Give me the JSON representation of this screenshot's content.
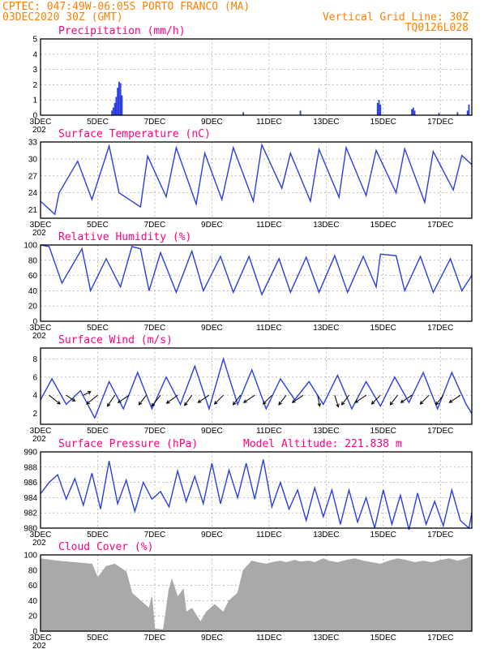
{
  "header": {
    "line1": "CPTEC:   047:49W-06:05S   PORTO FRANCO (MA)",
    "line2_left": "03DEC2020 30Z (GMT)",
    "line2_right": "Vertical Grid Line: 30Z",
    "line3_right": "TQ0126L028"
  },
  "colors": {
    "header": "#ff8000",
    "title": "#ff0080",
    "line": "#2a3fe0",
    "bar": "#2a3fe0",
    "cloud": "#a9a9a9",
    "arrow": "#000000"
  },
  "x_axis": {
    "start_day": 3,
    "end_day": 18.1,
    "tick_labels": [
      "3DEC",
      "5DEC",
      "7DEC",
      "9DEC",
      "11DEC",
      "13DEC",
      "15DEC",
      "17DEC"
    ],
    "tick_days": [
      3,
      5,
      7,
      9,
      11,
      13,
      15,
      17
    ],
    "year_fragment": "202"
  },
  "chart_data": [
    {
      "type": "bar",
      "title": "Precipitation (mm/h)",
      "ylim": [
        0,
        5
      ],
      "yticks": [
        0,
        1,
        2,
        3,
        4,
        5
      ],
      "x": [
        5.5,
        5.55,
        5.6,
        5.65,
        5.7,
        5.75,
        5.8,
        5.85,
        10.1,
        12.1,
        14.8,
        14.85,
        14.9,
        16.0,
        16.05,
        16.1,
        16.95,
        17.6,
        17.95,
        18.0
      ],
      "values": [
        0.3,
        0.5,
        0.8,
        1.2,
        1.8,
        2.2,
        2.1,
        1.3,
        0.2,
        0.3,
        0.8,
        1.0,
        0.7,
        0.4,
        0.5,
        0.3,
        0.15,
        0.2,
        0.3,
        0.7
      ]
    },
    {
      "type": "line",
      "title": "Surface Temperature (nC)",
      "ylim": [
        19.5,
        33
      ],
      "yticks": [
        21,
        24,
        27,
        30,
        33
      ],
      "x": [
        3.0,
        3.5,
        3.65,
        4.3,
        4.8,
        5.4,
        5.75,
        6.5,
        6.75,
        7.4,
        7.75,
        8.45,
        8.75,
        9.35,
        9.75,
        10.45,
        10.75,
        11.45,
        11.75,
        12.45,
        12.75,
        13.45,
        13.7,
        14.4,
        14.75,
        15.45,
        15.75,
        16.45,
        16.75,
        17.45,
        17.75,
        18.1
      ],
      "values": [
        22.5,
        20.2,
        24.0,
        29.6,
        22.8,
        32.3,
        24.0,
        21.5,
        30.5,
        23.3,
        32.0,
        22.0,
        31.0,
        22.8,
        32.0,
        22.5,
        32.5,
        24.8,
        31.0,
        22.5,
        31.7,
        23.2,
        32.0,
        23.5,
        31.5,
        24.0,
        31.8,
        22.3,
        31.3,
        24.5,
        30.6,
        29.0
      ]
    },
    {
      "type": "line",
      "title": "Relative Humidity (%)",
      "ylim": [
        0,
        100
      ],
      "yticks": [
        0,
        20,
        40,
        60,
        80,
        100
      ],
      "x": [
        3.0,
        3.3,
        3.75,
        4.45,
        4.75,
        5.3,
        5.8,
        6.2,
        6.5,
        6.8,
        7.2,
        7.75,
        8.3,
        8.7,
        9.3,
        9.75,
        10.3,
        10.75,
        11.35,
        11.75,
        12.3,
        12.75,
        13.3,
        13.75,
        14.3,
        14.75,
        14.9,
        15.45,
        15.75,
        16.3,
        16.75,
        17.35,
        17.75,
        18.1
      ],
      "values": [
        100,
        98,
        50,
        95,
        40,
        82,
        45,
        98,
        95,
        40,
        90,
        38,
        92,
        40,
        85,
        38,
        85,
        35,
        82,
        38,
        84,
        38,
        86,
        38,
        85,
        45,
        88,
        86,
        40,
        85,
        38,
        82,
        40,
        60
      ]
    },
    {
      "type": "line",
      "title": "Surface Wind (m/s)",
      "ylim": [
        0.8,
        9.2
      ],
      "yticks": [
        2,
        4,
        6,
        8
      ],
      "x": [
        3.0,
        3.4,
        3.9,
        4.4,
        4.9,
        5.4,
        5.9,
        6.4,
        6.9,
        7.4,
        7.9,
        8.4,
        8.9,
        9.4,
        9.9,
        10.4,
        10.9,
        11.4,
        11.9,
        12.4,
        12.9,
        13.4,
        13.9,
        14.4,
        14.9,
        15.4,
        15.9,
        16.4,
        16.9,
        17.4,
        17.9,
        18.1
      ],
      "values": [
        3.5,
        5.8,
        3.0,
        4.5,
        1.5,
        5.5,
        2.5,
        6.5,
        2.5,
        6.0,
        3.0,
        7.2,
        2.5,
        8.0,
        3.0,
        6.8,
        2.5,
        5.8,
        3.5,
        5.5,
        3.0,
        6.2,
        2.5,
        5.5,
        2.8,
        6.0,
        3.2,
        6.5,
        2.5,
        6.5,
        3.0,
        2.0
      ],
      "arrows": {
        "x": [
          3.3,
          3.9,
          4.5,
          5.0,
          5.6,
          6.1,
          6.7,
          7.2,
          7.8,
          8.3,
          8.9,
          9.4,
          10.0,
          10.5,
          11.1,
          11.6,
          12.2,
          12.7,
          13.3,
          13.8,
          14.4,
          14.9,
          15.5,
          16.0,
          16.6,
          17.1,
          17.7
        ],
        "u": [
          1.5,
          1.2,
          1.0,
          -1.5,
          -1.0,
          -1.5,
          -1.0,
          -1.2,
          -1.5,
          -1.0,
          -1.5,
          -1.2,
          -1.0,
          -1.5,
          -1.2,
          -1.0,
          -1.5,
          0.3,
          0.5,
          -1.0,
          -1.5,
          -1.2,
          -1.0,
          -1.5,
          -1.2,
          -1.0,
          -1.5
        ],
        "v": [
          -1.2,
          -0.8,
          0.5,
          -1.2,
          -1.5,
          -1.0,
          -1.3,
          -1.5,
          -1.1,
          -1.4,
          -1.0,
          -1.2,
          -1.3,
          -1.0,
          -1.2,
          -1.3,
          -1.0,
          -1.5,
          -1.6,
          -1.3,
          -1.0,
          -1.2,
          -1.3,
          -1.0,
          -1.2,
          -1.3,
          -1.0
        ]
      }
    },
    {
      "type": "line",
      "title": "Surface Pressure (hPa)",
      "subtitle": "Model Altitude: 221.838  m",
      "ylim": [
        980,
        990
      ],
      "yticks": [
        980,
        982,
        984,
        986,
        988,
        990
      ],
      "x": [
        3.0,
        3.3,
        3.6,
        3.9,
        4.2,
        4.5,
        4.8,
        5.1,
        5.4,
        5.7,
        6.0,
        6.3,
        6.6,
        6.9,
        7.2,
        7.5,
        7.8,
        8.1,
        8.4,
        8.7,
        9.0,
        9.3,
        9.6,
        9.9,
        10.2,
        10.5,
        10.8,
        11.1,
        11.4,
        11.7,
        12.0,
        12.3,
        12.6,
        12.9,
        13.2,
        13.5,
        13.8,
        14.1,
        14.4,
        14.7,
        15.0,
        15.3,
        15.6,
        15.9,
        16.2,
        16.5,
        16.8,
        17.1,
        17.4,
        17.7,
        18.0,
        18.1
      ],
      "values": [
        984.5,
        986.0,
        987.0,
        983.8,
        986.5,
        983.0,
        987.2,
        982.5,
        988.8,
        983.2,
        986.3,
        982.2,
        986.0,
        983.8,
        984.8,
        982.8,
        987.5,
        983.5,
        986.8,
        983.2,
        988.5,
        983.2,
        987.6,
        984.0,
        988.5,
        983.8,
        989.0,
        982.8,
        986.0,
        982.5,
        985.0,
        981.0,
        985.3,
        981.5,
        985.0,
        980.5,
        985.0,
        980.8,
        984.0,
        980.0,
        985.0,
        980.5,
        984.3,
        979.8,
        984.6,
        980.5,
        983.5,
        980.3,
        985.0,
        981.0,
        980.0,
        982.0
      ]
    },
    {
      "type": "area",
      "title": "Cloud Cover (%)",
      "ylim": [
        0,
        100
      ],
      "yticks": [
        0,
        20,
        40,
        60,
        80,
        100
      ],
      "x": [
        3.0,
        3.6,
        4.2,
        4.8,
        5.0,
        5.3,
        5.6,
        6.0,
        6.2,
        6.5,
        6.8,
        6.9,
        7.0,
        7.3,
        7.5,
        7.6,
        7.8,
        8.0,
        8.1,
        8.3,
        8.6,
        8.8,
        9.1,
        9.4,
        9.6,
        9.9,
        10.1,
        10.4,
        10.6,
        10.9,
        11.1,
        11.4,
        11.6,
        11.9,
        12.1,
        12.4,
        12.6,
        12.9,
        13.1,
        13.4,
        13.7,
        14.0,
        14.3,
        14.6,
        14.9,
        15.2,
        15.5,
        15.8,
        16.1,
        16.4,
        16.7,
        17.0,
        17.3,
        17.6,
        17.9,
        18.1
      ],
      "values": [
        95,
        92,
        90,
        88,
        70,
        85,
        88,
        78,
        50,
        40,
        30,
        45,
        3,
        2,
        55,
        68,
        45,
        55,
        25,
        30,
        12,
        25,
        35,
        25,
        40,
        50,
        80,
        92,
        90,
        88,
        90,
        92,
        90,
        93,
        91,
        92,
        90,
        95,
        92,
        90,
        93,
        95,
        92,
        90,
        88,
        92,
        95,
        93,
        90,
        92,
        90,
        93,
        95,
        92,
        95,
        98
      ]
    }
  ]
}
